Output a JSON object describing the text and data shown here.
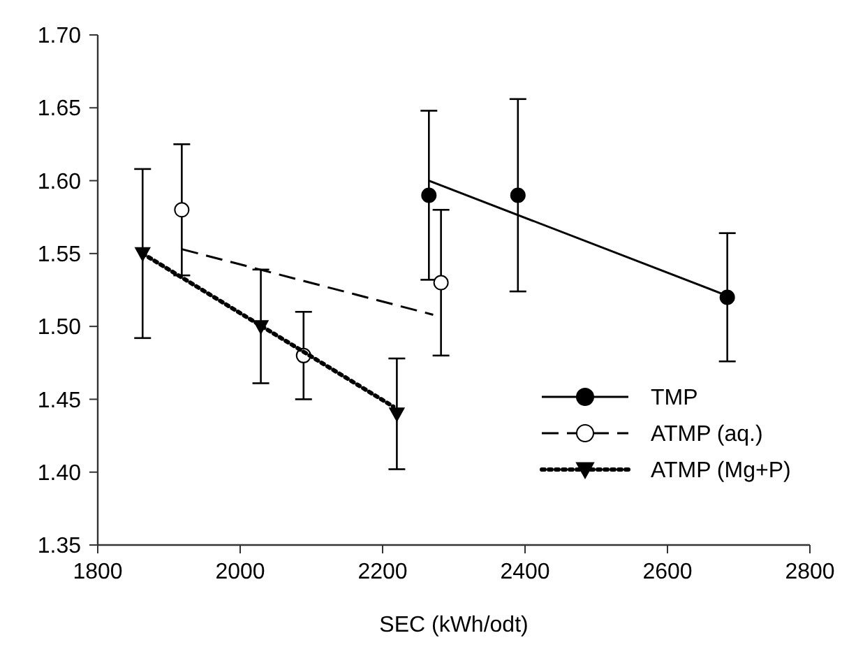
{
  "chart_data": {
    "type": "scatter",
    "xlabel": "SEC (kWh/odt)",
    "xlim": [
      1800,
      2800
    ],
    "xticks": [
      1800,
      2000,
      2200,
      2400,
      2600,
      2800
    ],
    "ylim": [
      1.35,
      1.7
    ],
    "yticks": [
      {
        "value": 1.35,
        "label": "1.35"
      },
      {
        "value": 1.4,
        "label": "1.40"
      },
      {
        "value": 1.45,
        "label": "1.45"
      },
      {
        "value": 1.5,
        "label": "1.50"
      },
      {
        "value": 1.55,
        "label": "1.55"
      },
      {
        "value": 1.6,
        "label": "1.60"
      },
      {
        "value": 1.65,
        "label": "1.65"
      },
      {
        "value": 1.7,
        "label": "1.70"
      }
    ],
    "grid": false,
    "legend": "bottom right",
    "series": [
      {
        "name": "TMP",
        "color": "#000000",
        "marker": "circle",
        "line_style": "solid",
        "x": [
          2265,
          2390,
          2684
        ],
        "values": [
          1.59,
          1.59,
          1.52
        ],
        "errors": [
          0.058,
          0.066,
          0.044
        ]
      },
      {
        "name": "ATMP (aq.)",
        "color": "#ffffff",
        "marker": "circle",
        "line_style": "dashed",
        "x": [
          1918,
          2089,
          2282
        ],
        "values": [
          1.58,
          1.48,
          1.53
        ],
        "errors": [
          0.045,
          0.03,
          0.05
        ]
      },
      {
        "name": "ATMP (Mg+P)",
        "color": "#000000",
        "marker": "triangle",
        "line_style": "dotted",
        "x": [
          1863,
          2029,
          2220
        ],
        "values": [
          1.55,
          1.5,
          1.44
        ],
        "errors": [
          0.058,
          0.039,
          0.038
        ]
      },
      {
        "type": "line",
        "color": "#000000",
        "line_style": "solid",
        "marker": "none",
        "x": [
          2265,
          2684
        ],
        "values": [
          1.6,
          1.521
        ]
      },
      {
        "type": "line",
        "color": "#000000",
        "line_style": "dashed",
        "marker": "none",
        "x": [
          1918,
          2271
        ],
        "values": [
          1.553,
          1.508
        ]
      },
      {
        "type": "line",
        "color": "#000000",
        "line_style": "dotted",
        "marker": "none",
        "x": [
          1863,
          2215
        ],
        "values": [
          1.55,
          1.445
        ]
      }
    ]
  }
}
